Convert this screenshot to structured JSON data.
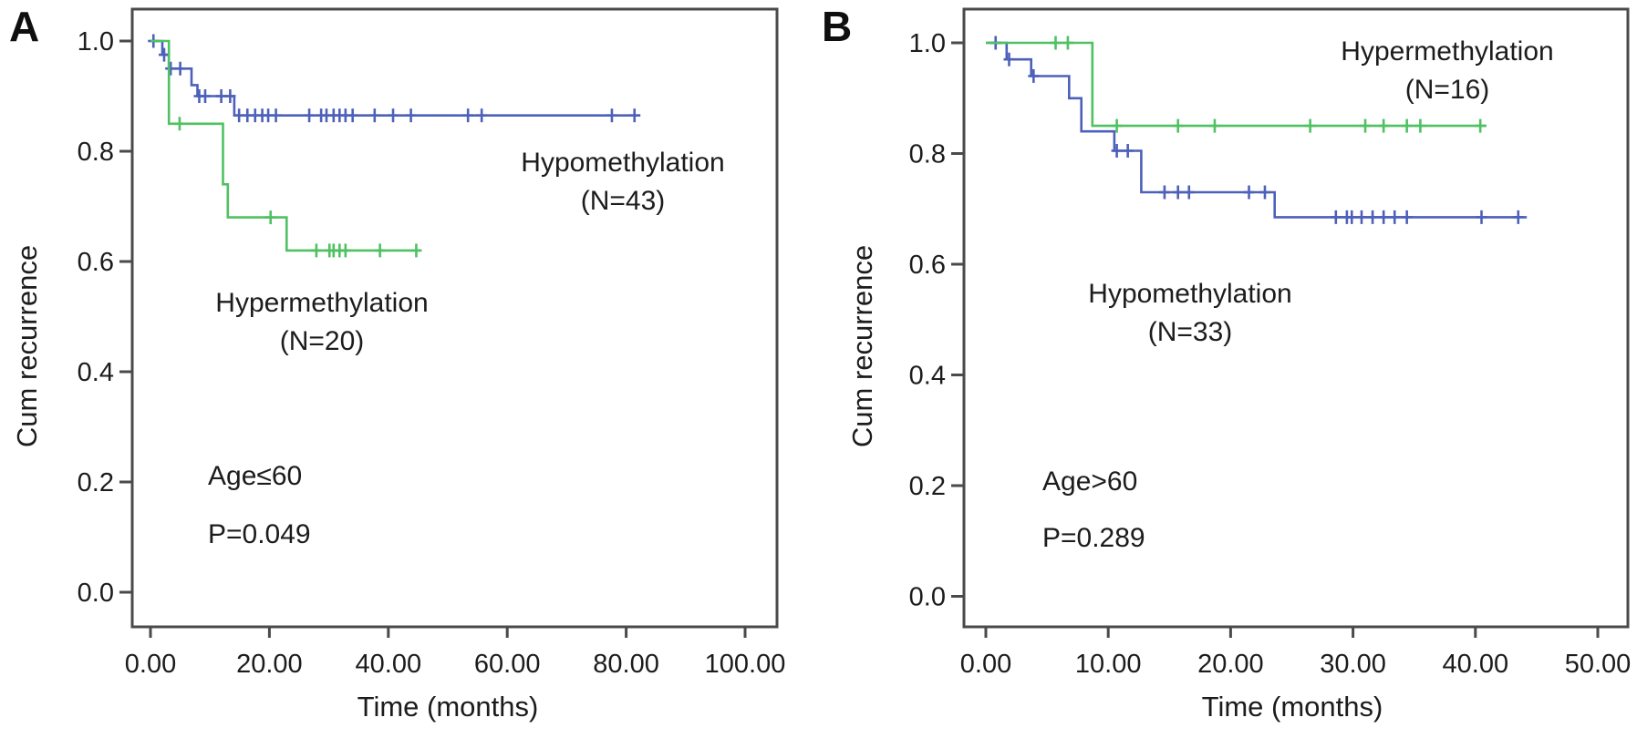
{
  "figure": {
    "background": "#ffffff",
    "axis_color": "#4a4a4a",
    "text_color": "#1c1c1c"
  },
  "chart_data": [
    {
      "type": "line",
      "subtype": "kaplan_meier_step",
      "panel_label": "A",
      "title": "",
      "xlabel": "Time (months)",
      "ylabel": "Cum recurrence",
      "grid": false,
      "legend": "inline-annotations",
      "xlim": [
        0,
        105
      ],
      "ylim": [
        0,
        1.0
      ],
      "x_tick_values": [
        0,
        20,
        40,
        60,
        80,
        100
      ],
      "x_tick_labels": [
        "0.00",
        "20.00",
        "40.00",
        "60.00",
        "80.00",
        "100.00"
      ],
      "y_tick_values": [
        0.0,
        0.2,
        0.4,
        0.6,
        0.8,
        1.0
      ],
      "y_tick_labels": [
        "0.0",
        "0.2",
        "0.4",
        "0.6",
        "0.8",
        "1.0"
      ],
      "annotations": {
        "group1_line1": "Hypomethylation",
        "group1_line2": "(N=43)",
        "group2_line1": "Hypermethylation",
        "group2_line2": "(N=20)",
        "subgroup": "Age≤60",
        "p_value": "P=0.049"
      },
      "series": [
        {
          "name": "Hypomethylation",
          "n": 43,
          "color": "#4d60ba",
          "steps": [
            [
              0,
              1.0
            ],
            [
              2.0,
              1.0
            ],
            [
              2.0,
              0.975
            ],
            [
              3.1,
              0.975
            ],
            [
              3.1,
              0.95
            ],
            [
              6.9,
              0.95
            ],
            [
              6.9,
              0.92
            ],
            [
              7.9,
              0.92
            ],
            [
              7.9,
              0.9
            ],
            [
              14.1,
              0.9
            ],
            [
              14.1,
              0.865
            ],
            [
              82.4,
              0.865
            ]
          ],
          "censors": [
            [
              0.5,
              1.0
            ],
            [
              2.3,
              0.975
            ],
            [
              3.4,
              0.95
            ],
            [
              5.0,
              0.95
            ],
            [
              8.2,
              0.9
            ],
            [
              9.2,
              0.9
            ],
            [
              11.9,
              0.9
            ],
            [
              13.4,
              0.9
            ],
            [
              14.9,
              0.865
            ],
            [
              16.3,
              0.865
            ],
            [
              17.6,
              0.865
            ],
            [
              18.8,
              0.865
            ],
            [
              19.8,
              0.865
            ],
            [
              21.1,
              0.865
            ],
            [
              26.7,
              0.865
            ],
            [
              28.7,
              0.865
            ],
            [
              29.6,
              0.865
            ],
            [
              30.8,
              0.865
            ],
            [
              31.8,
              0.865
            ],
            [
              32.8,
              0.865
            ],
            [
              34.0,
              0.865
            ],
            [
              37.7,
              0.865
            ],
            [
              40.8,
              0.865
            ],
            [
              43.8,
              0.865
            ],
            [
              53.4,
              0.865
            ],
            [
              55.7,
              0.865
            ],
            [
              77.6,
              0.865
            ],
            [
              81.4,
              0.865
            ]
          ]
        },
        {
          "name": "Hypermethylation",
          "n": 20,
          "color": "#4fc162",
          "steps": [
            [
              0,
              1.0
            ],
            [
              3.1,
              1.0
            ],
            [
              3.1,
              0.85
            ],
            [
              12.2,
              0.85
            ],
            [
              12.2,
              0.74
            ],
            [
              13.0,
              0.74
            ],
            [
              13.0,
              0.68
            ],
            [
              22.9,
              0.68
            ],
            [
              22.9,
              0.62
            ],
            [
              45.3,
              0.62
            ]
          ],
          "censors": [
            [
              4.9,
              0.85
            ],
            [
              20.2,
              0.68
            ],
            [
              27.9,
              0.62
            ],
            [
              30.1,
              0.62
            ],
            [
              30.8,
              0.62
            ],
            [
              31.8,
              0.62
            ],
            [
              32.8,
              0.62
            ],
            [
              38.6,
              0.62
            ],
            [
              44.7,
              0.62
            ]
          ]
        }
      ]
    },
    {
      "type": "line",
      "subtype": "kaplan_meier_step",
      "panel_label": "B",
      "title": "",
      "xlabel": "Time (months)",
      "ylabel": "Cum recurrence",
      "grid": false,
      "legend": "inline-annotations",
      "xlim": [
        0,
        52.5
      ],
      "ylim": [
        0,
        1.0
      ],
      "x_tick_values": [
        0,
        10,
        20,
        30,
        40,
        50
      ],
      "x_tick_labels": [
        "0.00",
        "10.00",
        "20.00",
        "30.00",
        "40.00",
        "50.00"
      ],
      "y_tick_values": [
        0.0,
        0.2,
        0.4,
        0.6,
        0.8,
        1.0
      ],
      "y_tick_labels": [
        "0.0",
        "0.2",
        "0.4",
        "0.6",
        "0.8",
        "1.0"
      ],
      "annotations": {
        "group1_line1": "Hypermethylation",
        "group1_line2": "(N=16)",
        "group2_line1": "Hypomethylation",
        "group2_line2": "(N=33)",
        "subgroup": "Age>60",
        "p_value": "P=0.289"
      },
      "series": [
        {
          "name": "Hypomethylation",
          "n": 33,
          "color": "#4d60ba",
          "steps": [
            [
              0,
              1.0
            ],
            [
              1.7,
              1.0
            ],
            [
              1.7,
              0.97
            ],
            [
              3.7,
              0.97
            ],
            [
              3.7,
              0.94
            ],
            [
              6.8,
              0.94
            ],
            [
              6.8,
              0.9
            ],
            [
              7.8,
              0.9
            ],
            [
              7.8,
              0.84
            ],
            [
              10.5,
              0.84
            ],
            [
              10.5,
              0.805
            ],
            [
              12.7,
              0.805
            ],
            [
              12.7,
              0.73
            ],
            [
              23.6,
              0.73
            ],
            [
              23.6,
              0.685
            ],
            [
              44.2,
              0.685
            ]
          ],
          "censors": [
            [
              0.8,
              1.0
            ],
            [
              1.9,
              0.97
            ],
            [
              3.9,
              0.94
            ],
            [
              10.7,
              0.805
            ],
            [
              11.6,
              0.805
            ],
            [
              14.6,
              0.73
            ],
            [
              15.7,
              0.73
            ],
            [
              16.6,
              0.73
            ],
            [
              21.5,
              0.73
            ],
            [
              22.8,
              0.73
            ],
            [
              28.6,
              0.685
            ],
            [
              29.5,
              0.685
            ],
            [
              29.9,
              0.685
            ],
            [
              30.7,
              0.685
            ],
            [
              31.6,
              0.685
            ],
            [
              32.5,
              0.685
            ],
            [
              33.4,
              0.685
            ],
            [
              34.4,
              0.685
            ],
            [
              40.5,
              0.685
            ],
            [
              43.5,
              0.685
            ]
          ]
        },
        {
          "name": "Hypermethylation",
          "n": 16,
          "color": "#4fc162",
          "steps": [
            [
              0,
              1.0
            ],
            [
              8.7,
              1.0
            ],
            [
              8.7,
              0.85
            ],
            [
              40.9,
              0.85
            ]
          ],
          "censors": [
            [
              5.7,
              1.0
            ],
            [
              6.7,
              1.0
            ],
            [
              10.7,
              0.85
            ],
            [
              15.7,
              0.85
            ],
            [
              18.7,
              0.85
            ],
            [
              26.5,
              0.85
            ],
            [
              31.0,
              0.85
            ],
            [
              32.5,
              0.85
            ],
            [
              34.4,
              0.85
            ],
            [
              35.5,
              0.85
            ],
            [
              40.4,
              0.85
            ]
          ]
        }
      ]
    }
  ]
}
